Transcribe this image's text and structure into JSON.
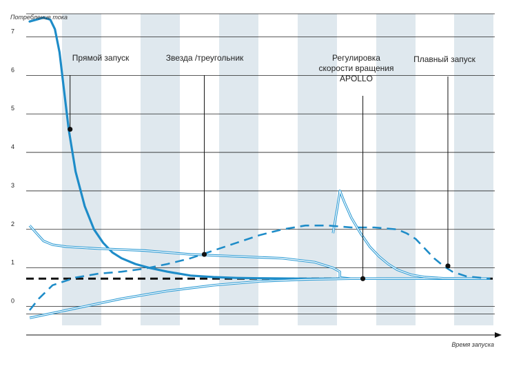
{
  "chart_data": {
    "type": "line",
    "title": "",
    "ylabel": "Потребление  тока",
    "xlabel": "Время  запуска",
    "ylim": [
      -0.6,
      7.6
    ],
    "xlim": [
      0,
      100
    ],
    "y_ticks": [
      "0",
      "1",
      "2",
      "3",
      "4",
      "5",
      "6",
      "7"
    ],
    "grid": true,
    "colors": {
      "curve": "#1e8cc8",
      "curve_light": "#2a9ad4",
      "band": "#dfe8ee",
      "grid": "#222222",
      "baseline": "#111111"
    },
    "nominal_current": 0.72,
    "series": [
      {
        "key": "direct",
        "style": "solid-thick",
        "x": [
          0,
          1.5,
          3,
          4.5,
          5.5,
          6.5,
          7.5,
          8.5,
          10,
          12,
          14,
          16,
          18,
          20,
          23,
          26,
          30,
          35,
          40,
          45,
          50,
          60,
          70,
          80,
          90,
          100
        ],
        "y": [
          7.4,
          7.45,
          7.5,
          7.45,
          7.2,
          6.6,
          5.6,
          4.6,
          3.5,
          2.6,
          2.0,
          1.65,
          1.4,
          1.25,
          1.1,
          1.0,
          0.9,
          0.8,
          0.76,
          0.74,
          0.73,
          0.72,
          0.72,
          0.72,
          0.72,
          0.72
        ]
      },
      {
        "key": "star_delta",
        "style": "double",
        "x": [
          0,
          1.5,
          3,
          5,
          8,
          15,
          25,
          35,
          45,
          55,
          62,
          66,
          67.5,
          67.5,
          70,
          80,
          90,
          100
        ],
        "y": [
          2.1,
          1.9,
          1.7,
          1.6,
          1.55,
          1.5,
          1.45,
          1.35,
          1.3,
          1.25,
          1.15,
          1.0,
          0.9,
          0.75,
          0.72,
          0.72,
          0.72,
          0.72
        ]
      },
      {
        "key": "star_delta_lower",
        "style": "double",
        "x": [
          0,
          10,
          20,
          30,
          40,
          50,
          60,
          70,
          80,
          90,
          100
        ],
        "y": [
          -0.3,
          -0.05,
          0.2,
          0.4,
          0.55,
          0.65,
          0.7,
          0.72,
          0.72,
          0.72,
          0.72
        ]
      },
      {
        "key": "apollo",
        "style": "double",
        "x": [
          66,
          67,
          67.5,
          68.5,
          70,
          72,
          74,
          76,
          78,
          80,
          83,
          86,
          90,
          100
        ],
        "y": [
          1.9,
          2.6,
          3.0,
          2.7,
          2.3,
          1.9,
          1.55,
          1.3,
          1.1,
          0.95,
          0.82,
          0.76,
          0.73,
          0.72
        ]
      },
      {
        "key": "soft",
        "style": "dashed",
        "x": [
          0,
          2,
          5,
          10,
          15,
          20,
          25,
          30,
          35,
          40,
          45,
          50,
          55,
          60,
          65,
          70,
          75,
          80,
          82,
          84,
          86,
          88,
          90,
          92,
          95,
          100
        ],
        "y": [
          -0.1,
          0.2,
          0.55,
          0.75,
          0.85,
          0.9,
          0.98,
          1.1,
          1.25,
          1.45,
          1.65,
          1.85,
          2.0,
          2.1,
          2.1,
          2.05,
          2.05,
          2.0,
          1.9,
          1.75,
          1.5,
          1.25,
          1.05,
          0.9,
          0.78,
          0.72
        ]
      }
    ],
    "markers": [
      {
        "label": "Прямой  запуск",
        "x": 8.8,
        "y": 4.6
      },
      {
        "label": "Звезда  /треугольник",
        "x": 38,
        "y": 1.35
      },
      {
        "label": "Регулировка\nскорости  вращения\nAPOLLO",
        "x": 72.5,
        "y": 0.72
      },
      {
        "label": "Плавный  запуск",
        "x": 91,
        "y": 1.05
      }
    ]
  }
}
